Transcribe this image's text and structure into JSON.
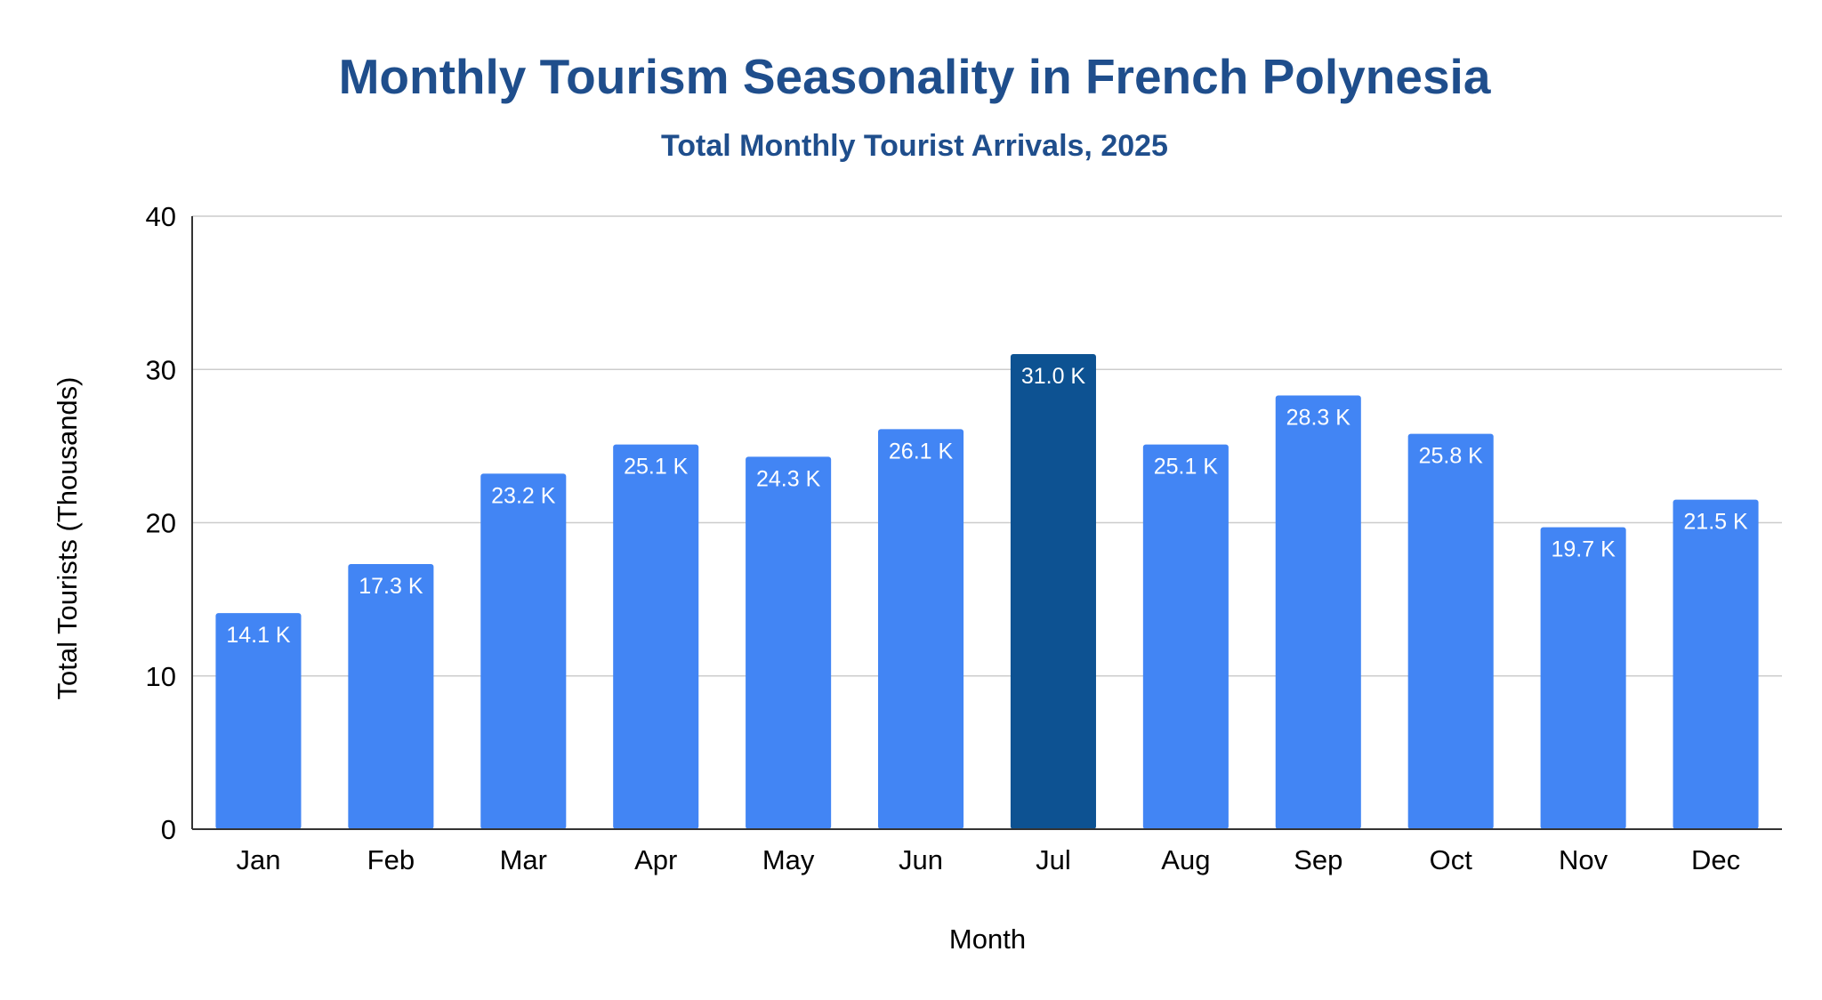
{
  "chart_data": {
    "type": "bar",
    "title": "Monthly Tourism Seasonality in French Polynesia",
    "subtitle": "Total Monthly Tourist Arrivals, 2025",
    "xlabel": "Month",
    "ylabel": "Total Tourists (Thousands)",
    "ylim": [
      0,
      40
    ],
    "yticks": [
      0,
      10,
      20,
      30,
      40
    ],
    "ytick_labels": [
      "0",
      "10",
      "20",
      "30",
      "40"
    ],
    "grid": true,
    "legend": "none",
    "categories": [
      "Jan",
      "Feb",
      "Mar",
      "Apr",
      "May",
      "Jun",
      "Jul",
      "Aug",
      "Sep",
      "Oct",
      "Nov",
      "Dec"
    ],
    "values": [
      14.1,
      17.3,
      23.2,
      25.1,
      24.3,
      26.1,
      31.0,
      25.1,
      28.3,
      25.8,
      19.7,
      21.5
    ],
    "data_labels": [
      "14.1 K",
      "17.3 K",
      "23.2 K",
      "25.1 K",
      "24.3 K",
      "26.1 K",
      "31.0 K",
      "25.1 K",
      "28.3 K",
      "25.8 K",
      "19.7 K",
      "21.5 K"
    ],
    "highlight_category": "Jul",
    "colors": {
      "title": "#1f4e8c",
      "bar": "#4285f4",
      "bar_highlight": "#0d5292",
      "bar_label": "#ffffff",
      "gridline": "#cccccc",
      "axis": "#333333",
      "text": "#000000"
    }
  }
}
